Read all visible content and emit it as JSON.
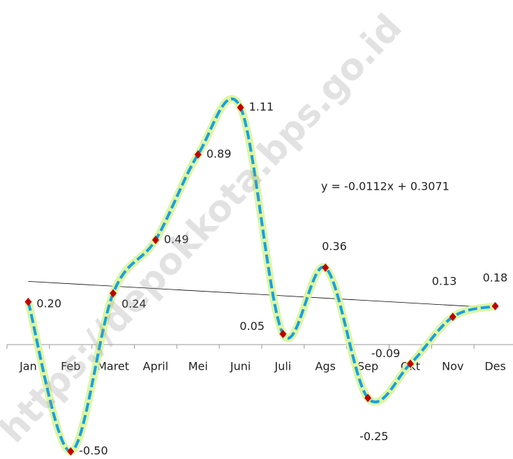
{
  "chart_data": {
    "type": "line",
    "categories": [
      "Jan",
      "Feb",
      "Maret",
      "April",
      "Mei",
      "Juni",
      "Juli",
      "Ags",
      "Sep",
      "Okt",
      "Nov",
      "Des"
    ],
    "series": [
      {
        "values": [
          0.2,
          -0.5,
          0.24,
          0.49,
          0.89,
          1.11,
          0.05,
          0.36,
          -0.25,
          -0.09,
          0.13,
          0.18
        ],
        "value_labels": [
          "0.20",
          "-0.50",
          "0.24",
          "0.49",
          "0.89",
          "1.11",
          "0.05",
          "0.36",
          "-0.25",
          "-0.09",
          "0.13",
          "0.18"
        ],
        "color": "#1a9fe0",
        "glow_color": "#d8f59a",
        "marker_color": "#c00000"
      }
    ],
    "trendline": {
      "label": "y = -0.0112x + 0.3071",
      "slope": -0.0112,
      "intercept": 0.3071,
      "color": "#000000"
    },
    "watermark": "https://depokkota.bps.go.id"
  }
}
